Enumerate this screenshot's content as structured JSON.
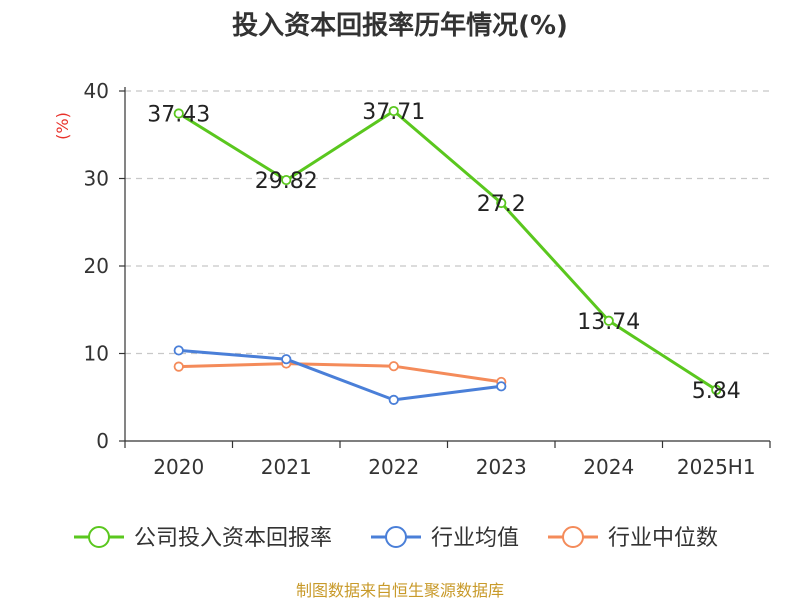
{
  "chart_data": {
    "type": "line",
    "title": "投入资本回报率历年情况(%)",
    "ylabel": "(%)",
    "ylim": [
      0,
      40
    ],
    "yticks": [
      0,
      10,
      20,
      30,
      40
    ],
    "grid": true,
    "legend_position": "bottom",
    "categories": [
      "2020",
      "2021",
      "2022",
      "2023",
      "2024",
      "2025H1"
    ],
    "series": [
      {
        "name": "公司投入资本回报率",
        "color": "#5ac71e",
        "values": [
          37.43,
          29.82,
          37.71,
          27.2,
          13.74,
          5.84
        ],
        "labels": [
          "37.43",
          "29.82",
          "37.71",
          "27.2",
          "13.74",
          "5.84"
        ]
      },
      {
        "name": "行业均值",
        "color": "#4a7fd8",
        "values": [
          10.35,
          9.35,
          4.7,
          6.25,
          null,
          null
        ]
      },
      {
        "name": "行业中位数",
        "color": "#f48b5a",
        "values": [
          8.5,
          8.85,
          8.55,
          6.75,
          null,
          null
        ]
      }
    ]
  },
  "source": "制图数据来自恒生聚源数据库"
}
